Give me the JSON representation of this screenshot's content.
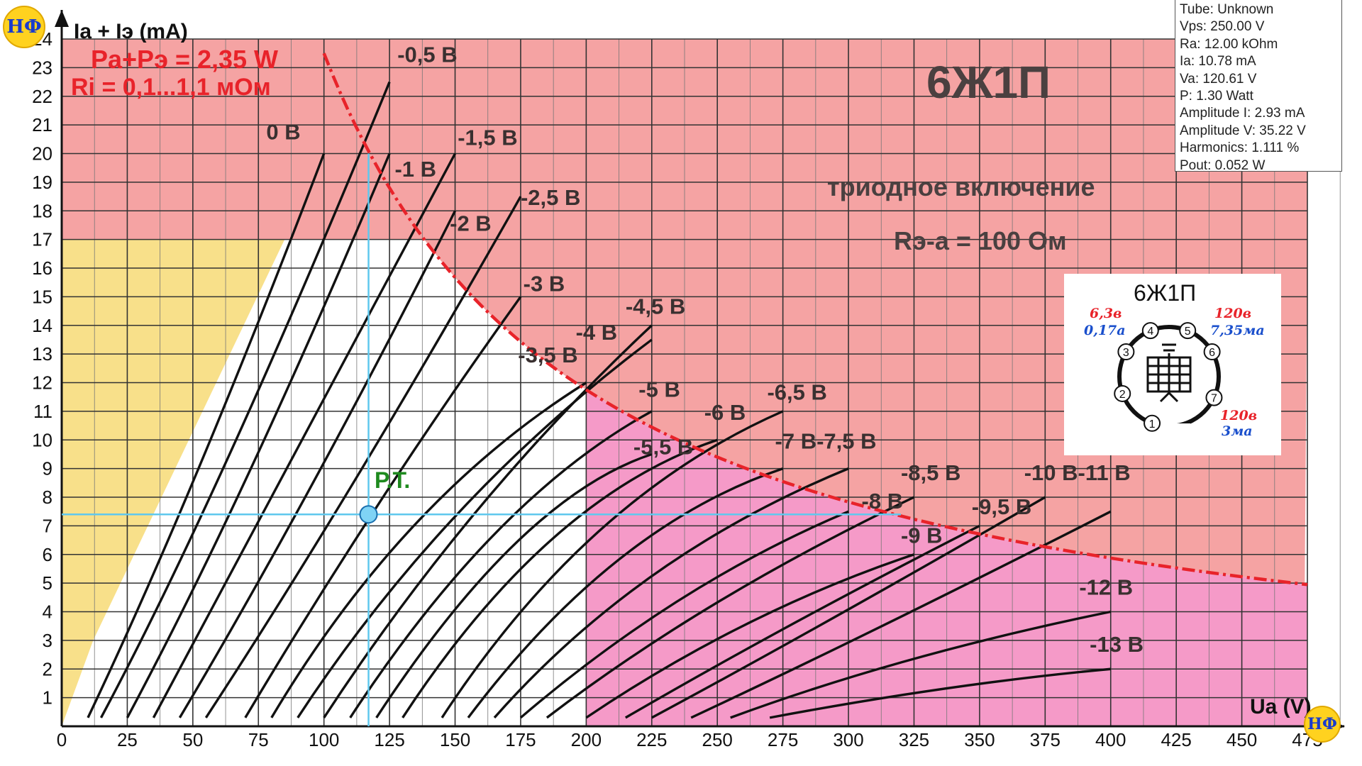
{
  "chart_data": {
    "type": "line",
    "ylabel": "Ia + Iэ (mA)",
    "xlabel": "Ua (V)",
    "x_ticks": [
      0,
      25,
      50,
      75,
      100,
      125,
      150,
      175,
      200,
      225,
      250,
      275,
      300,
      325,
      350,
      375,
      400,
      425,
      450,
      475
    ],
    "y_ticks": [
      1,
      2,
      3,
      4,
      5,
      6,
      7,
      8,
      9,
      10,
      11,
      12,
      13,
      14,
      15,
      16,
      17,
      18,
      19,
      20,
      21,
      22,
      23,
      24
    ],
    "xlim": [
      0,
      475
    ],
    "ylim": [
      0,
      24
    ],
    "grid": true,
    "title": "6Ж1П",
    "subtitle": "триодное включение",
    "resistance_note": "Rэ-а = 100 Ом",
    "power_label": "Pa+Pэ = 2,35 W",
    "ri_label": "Ri = 0,1...1,1 мОм",
    "operating_point_label": "Р.Т.",
    "operating_point": {
      "ua": 117,
      "i": 7.4
    },
    "zones": {
      "yellow": {
        "color": "#f8e08a"
      },
      "red": {
        "color": "#f5a3a3",
        "ymin": 17
      },
      "pink": {
        "color": "#f59ac8",
        "xmin": 200
      }
    },
    "power_curve": {
      "watts": 2.35,
      "from_ua": 97,
      "to_ua": 475,
      "color": "#e8232a"
    },
    "grid_curves": [
      {
        "label": "0 В",
        "points": [
          [
            10,
            0.3
          ],
          [
            50,
            8
          ],
          [
            100,
            20
          ]
        ]
      },
      {
        "label": "-0,5 В",
        "points": [
          [
            15,
            0.3
          ],
          [
            60,
            8
          ],
          [
            125,
            22.5
          ]
        ]
      },
      {
        "label": "-1 В",
        "points": [
          [
            25,
            0.3
          ],
          [
            70,
            8
          ],
          [
            125,
            20
          ]
        ]
      },
      {
        "label": "-1,5 В",
        "points": [
          [
            35,
            0.3
          ],
          [
            80,
            8
          ],
          [
            150,
            20
          ]
        ]
      },
      {
        "label": "-2 В",
        "points": [
          [
            45,
            0.3
          ],
          [
            95,
            8
          ],
          [
            150,
            18
          ]
        ]
      },
      {
        "label": "-2,5 В",
        "points": [
          [
            55,
            0.3
          ],
          [
            110,
            8
          ],
          [
            175,
            18.5
          ]
        ]
      },
      {
        "label": "-3 В",
        "points": [
          [
            70,
            0.3
          ],
          [
            120,
            8
          ],
          [
            175,
            15
          ]
        ]
      },
      {
        "label": "-3,5 В",
        "points": [
          [
            80,
            0.3
          ],
          [
            130,
            8
          ],
          [
            200,
            12
          ]
        ]
      },
      {
        "label": "-4 В",
        "points": [
          [
            90,
            0.3
          ],
          [
            145,
            8
          ],
          [
            225,
            13.5
          ]
        ]
      },
      {
        "label": "-4,5 В",
        "points": [
          [
            100,
            0.3
          ],
          [
            155,
            8
          ],
          [
            225,
            14
          ]
        ]
      },
      {
        "label": "-5 В",
        "points": [
          [
            110,
            0.3
          ],
          [
            165,
            8
          ],
          [
            225,
            11
          ]
        ]
      },
      {
        "label": "-5,5 В",
        "points": [
          [
            120,
            0.3
          ],
          [
            175,
            8
          ],
          [
            225,
            9.5
          ]
        ]
      },
      {
        "label": "-6 В",
        "points": [
          [
            130,
            0.3
          ],
          [
            185,
            8
          ],
          [
            250,
            10
          ]
        ]
      },
      {
        "label": "-6,5 В",
        "points": [
          [
            145,
            0.3
          ],
          [
            200,
            8
          ],
          [
            275,
            11
          ]
        ]
      },
      {
        "label": "-7 В",
        "points": [
          [
            155,
            0.3
          ],
          [
            210,
            7
          ],
          [
            275,
            9
          ]
        ]
      },
      {
        "label": "-7,5 В",
        "points": [
          [
            165,
            0.3
          ],
          [
            220,
            6
          ],
          [
            300,
            9
          ]
        ]
      },
      {
        "label": "-8 В",
        "points": [
          [
            175,
            0.3
          ],
          [
            235,
            5
          ],
          [
            300,
            7.5
          ]
        ]
      },
      {
        "label": "-8,5 В",
        "points": [
          [
            185,
            0.3
          ],
          [
            245,
            4.5
          ],
          [
            325,
            8
          ]
        ]
      },
      {
        "label": "-9 В",
        "points": [
          [
            200,
            0.3
          ],
          [
            260,
            4
          ],
          [
            325,
            6
          ]
        ]
      },
      {
        "label": "-9,5 В",
        "points": [
          [
            215,
            0.3
          ],
          [
            275,
            3.5
          ],
          [
            350,
            7
          ]
        ]
      },
      {
        "label": "-10 В",
        "points": [
          [
            225,
            0.3
          ],
          [
            290,
            3.5
          ],
          [
            375,
            8
          ]
        ]
      },
      {
        "label": "-11 В",
        "points": [
          [
            240,
            0.3
          ],
          [
            310,
            3.3
          ],
          [
            400,
            7.5
          ]
        ]
      },
      {
        "label": "-12 В",
        "points": [
          [
            255,
            0.3
          ],
          [
            320,
            2.5
          ],
          [
            400,
            4
          ]
        ]
      },
      {
        "label": "-13 В",
        "points": [
          [
            270,
            0.3
          ],
          [
            340,
            1.5
          ],
          [
            400,
            2
          ]
        ]
      }
    ],
    "curve_labels": [
      {
        "text": "-0,5 В",
        "x": 128,
        "y": 23.2
      },
      {
        "text": "0 В",
        "x": 78,
        "y": 20.5
      },
      {
        "text": "-1,5 В",
        "x": 151,
        "y": 20.3
      },
      {
        "text": "-1 В",
        "x": 127,
        "y": 19.2
      },
      {
        "text": "-2,5 В",
        "x": 175,
        "y": 18.2
      },
      {
        "text": "-2 В",
        "x": 148,
        "y": 17.3
      },
      {
        "text": "-3 В",
        "x": 176,
        "y": 15.2
      },
      {
        "text": "-4,5 В",
        "x": 215,
        "y": 14.4
      },
      {
        "text": "-4 В",
        "x": 196,
        "y": 13.5
      },
      {
        "text": "-3,5 В",
        "x": 174,
        "y": 12.7
      },
      {
        "text": "-5 В",
        "x": 220,
        "y": 11.5
      },
      {
        "text": "-6,5 В",
        "x": 269,
        "y": 11.4
      },
      {
        "text": "-6 В",
        "x": 245,
        "y": 10.7
      },
      {
        "text": "-7 В-7,5 В",
        "x": 272,
        "y": 9.7
      },
      {
        "text": "-5,5 В",
        "x": 218,
        "y": 9.5
      },
      {
        "text": "-8,5 В",
        "x": 320,
        "y": 8.6
      },
      {
        "text": "-10 В-11 В",
        "x": 367,
        "y": 8.6
      },
      {
        "text": "-8 В",
        "x": 305,
        "y": 7.6
      },
      {
        "text": "-9,5 В",
        "x": 347,
        "y": 7.4
      },
      {
        "text": "-9 В",
        "x": 320,
        "y": 6.4
      },
      {
        "text": "-12 В",
        "x": 388,
        "y": 4.6
      },
      {
        "text": "-13 В",
        "x": 392,
        "y": 2.6
      }
    ]
  },
  "info_panel": {
    "lines": [
      "Tube: Unknown",
      "Vps: 250.00 V",
      "Ra: 12.00 kOhm",
      "Ia: 10.78 mA",
      "Va: 120.61 V",
      "P: 1.30 Watt",
      "Amplitude I: 2.93 mA",
      "Amplitude V: 35.22 V",
      "Harmonics: 1.111 %",
      "Pout: 0.052 W"
    ]
  },
  "pinout": {
    "title": "6Ж1П",
    "heater_v": "6,3в",
    "heater_a": "0,17а",
    "anode_v": "120в",
    "anode_ma": "7,35ма",
    "screen_v": "120в",
    "screen_ma": "3ма",
    "pins": [
      "1",
      "2",
      "3",
      "4",
      "5",
      "6",
      "7"
    ]
  },
  "logo": {
    "text": "НФ",
    "color": "#ffd21f"
  }
}
